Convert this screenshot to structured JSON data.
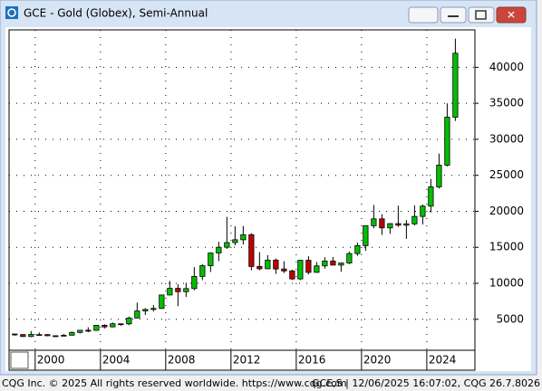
{
  "chart_data": {
    "type": "candlestick",
    "title": "GCE - Gold (Globex), Semi-Annual",
    "x": [
      1998.75,
      1999.25,
      1999.75,
      2000.25,
      2000.75,
      2001.25,
      2001.75,
      2002.25,
      2002.75,
      2003.25,
      2003.75,
      2004.25,
      2004.75,
      2005.25,
      2005.75,
      2006.25,
      2006.75,
      2007.25,
      2007.75,
      2008.25,
      2008.75,
      2009.25,
      2009.75,
      2010.25,
      2010.75,
      2011.25,
      2011.75,
      2012.25,
      2012.75,
      2013.25,
      2013.75,
      2014.25,
      2014.75,
      2015.25,
      2015.75,
      2016.25,
      2016.75,
      2017.25,
      2017.75,
      2018.25,
      2018.75,
      2019.25,
      2019.75,
      2020.25,
      2020.75,
      2021.25,
      2021.75,
      2022.25,
      2022.75,
      2023.25,
      2023.75,
      2024.25,
      2024.75,
      2025.25,
      2025.75
    ],
    "open": [
      2960,
      2880,
      2610,
      2880,
      2880,
      2720,
      2710,
      2790,
      3180,
      3480,
      3460,
      4170,
      3950,
      4380,
      4370,
      5180,
      6160,
      6370,
      6510,
      8380,
      9300,
      8840,
      9270,
      10960,
      12450,
      14210,
      15010,
      15660,
      16050,
      16750,
      12340,
      12020,
      13220,
      11990,
      11720,
      10610,
      13200,
      11520,
      12420,
      13090,
      12530,
      12820,
      14130,
      15230,
      18000,
      18950,
      17700,
      18290,
      18070,
      18260,
      19290,
      20720,
      23390,
      26410,
      33070
    ],
    "high": [
      3000,
      2930,
      3380,
      3170,
      2940,
      2740,
      2950,
      3300,
      3490,
      3900,
      4170,
      4320,
      4560,
      4410,
      5380,
      7320,
      6550,
      6990,
      8420,
      10330,
      9890,
      10070,
      12260,
      12650,
      14310,
      15770,
      19230,
      17920,
      17960,
      16960,
      14330,
      13920,
      13460,
      13070,
      11910,
      13240,
      13770,
      12960,
      13620,
      13660,
      12840,
      14420,
      15660,
      18000,
      20890,
      19590,
      18340,
      20780,
      18790,
      20850,
      20930,
      24500,
      28010,
      35000,
      43980
    ],
    "low": [
      2730,
      2560,
      2520,
      2740,
      2640,
      2560,
      2650,
      2770,
      3040,
      3210,
      3420,
      3710,
      3880,
      4110,
      4180,
      5170,
      5600,
      6070,
      6430,
      8350,
      6820,
      8100,
      9040,
      10440,
      11570,
      13080,
      14780,
      15270,
      15400,
      11800,
      11800,
      12000,
      11310,
      11420,
      10460,
      10460,
      11240,
      11470,
      12040,
      12530,
      11600,
      12660,
      13810,
      14510,
      17640,
      16730,
      16870,
      17850,
      16180,
      18040,
      18160,
      19840,
      23160,
      26240,
      32550
    ],
    "close": [
      2880,
      2610,
      2900,
      2880,
      2720,
      2710,
      2790,
      3180,
      3480,
      3460,
      4170,
      3950,
      4380,
      4370,
      5180,
      6160,
      6370,
      6510,
      8380,
      9300,
      8840,
      9270,
      10960,
      12450,
      14210,
      15010,
      15660,
      16050,
      16750,
      12340,
      12020,
      13220,
      11990,
      11720,
      10610,
      13200,
      11520,
      12420,
      13090,
      12530,
      12820,
      14130,
      15230,
      18000,
      18950,
      17700,
      18290,
      18070,
      18260,
      19290,
      20720,
      23390,
      26410,
      33070,
      41960
    ],
    "up_color": "#00c000",
    "down_color": "#c00000",
    "xlim": [
      1998.4,
      2026.95
    ],
    "xticks": [
      2000,
      2004,
      2008,
      2012,
      2016,
      2020,
      2024
    ],
    "ylim": [
      700,
      45200
    ],
    "yticks": [
      5000,
      10000,
      15000,
      20000,
      25000,
      30000,
      35000,
      40000
    ],
    "grid": true
  },
  "footer": {
    "left": "CQG Inc. © 2025 All rights reserved worldwide. https://www.cqg.com",
    "right": "GCE,S | 12/06/2025 16:07:02, CQG 26.7.8026"
  }
}
